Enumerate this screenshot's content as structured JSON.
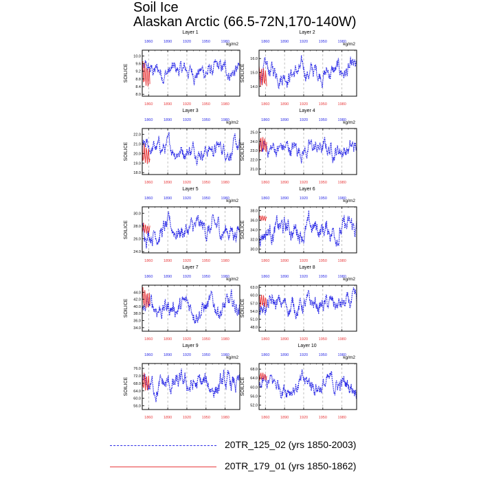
{
  "title": "Soil Ice",
  "subtitle": "Alaskan Arctic (66.5-72N,170-140W)",
  "colors": {
    "series1": "#2a2ae6",
    "series2": "#e8393b",
    "dash": "#999999"
  },
  "legend": [
    {
      "label": "20TR_125_02 (yrs 1850-2003)",
      "style": "dashed",
      "color": "#2a2ae6"
    },
    {
      "label": "20TR_179_01 (yrs 1850-1862)",
      "style": "solid",
      "color": "#e8393b"
    }
  ],
  "chart_data": [
    {
      "type": "line",
      "panel_title": "Layer 1",
      "units": "kg/m2",
      "ylabel": "SOILICE",
      "yticks": [
        "8.0",
        "8.4",
        "8.8",
        "9.2",
        "9.6",
        "10.0"
      ],
      "ylim": [
        7.9,
        10.3
      ],
      "top_xticks": [
        "1860",
        "1890",
        "1920",
        "1950",
        "1980"
      ],
      "bottom_xticks": [
        "1860",
        "1890",
        "1920",
        "1950",
        "1980"
      ],
      "series": [
        {
          "name": "20TR_125_02",
          "xlim": [
            1850,
            2003
          ],
          "range": [
            8.3,
            10.1
          ]
        },
        {
          "name": "20TR_179_01",
          "xlim": [
            1850,
            1862
          ],
          "range": [
            8.4,
            9.8
          ]
        }
      ]
    },
    {
      "type": "line",
      "panel_title": "Layer 2",
      "units": "kg/m2",
      "ylabel": "SOILICE",
      "yticks": [
        "14.0",
        "15.0",
        "16.0"
      ],
      "ylim": [
        13.3,
        16.6
      ],
      "top_xticks": [
        "1860",
        "1890",
        "1920",
        "1950",
        "1980"
      ],
      "bottom_xticks": [
        "1860",
        "1890",
        "1920",
        "1950",
        "1980"
      ],
      "series": [
        {
          "name": "20TR_125_02",
          "xlim": [
            1850,
            2003
          ],
          "range": [
            13.7,
            16.4
          ]
        },
        {
          "name": "20TR_179_01",
          "xlim": [
            1850,
            1862
          ],
          "range": [
            14.0,
            15.6
          ]
        }
      ]
    },
    {
      "type": "line",
      "panel_title": "Layer 3",
      "units": "kg/m2",
      "ylabel": "SOILICE",
      "yticks": [
        "18.0",
        "19.0",
        "20.0",
        "21.0",
        "22.0"
      ],
      "ylim": [
        17.8,
        22.6
      ],
      "top_xticks": [
        "1860",
        "1890",
        "1920",
        "1950",
        "1980"
      ],
      "bottom_xticks": [
        "1860",
        "1890",
        "1920",
        "1950",
        "1980"
      ],
      "series": [
        {
          "name": "20TR_125_02",
          "xlim": [
            1850,
            2003
          ],
          "range": [
            18.7,
            22.3
          ]
        },
        {
          "name": "20TR_179_01",
          "xlim": [
            1850,
            1862
          ],
          "range": [
            18.9,
            21.2
          ]
        }
      ]
    },
    {
      "type": "line",
      "panel_title": "Layer 4",
      "units": "kg/m2",
      "ylabel": "SOILICE",
      "yticks": [
        "21.0",
        "22.0",
        "23.0",
        "24.0",
        "25.0"
      ],
      "ylim": [
        20.4,
        25.4
      ],
      "top_xticks": [
        "1860",
        "1890",
        "1920",
        "1950",
        "1980"
      ],
      "bottom_xticks": [
        "1860",
        "1890",
        "1920",
        "1950",
        "1980"
      ],
      "series": [
        {
          "name": "20TR_125_02",
          "xlim": [
            1850,
            2003
          ],
          "range": [
            21.2,
            25.2
          ]
        },
        {
          "name": "20TR_179_01",
          "xlim": [
            1850,
            1862
          ],
          "range": [
            22.8,
            24.8
          ]
        }
      ]
    },
    {
      "type": "line",
      "panel_title": "Layer 5",
      "units": "kg/m2",
      "ylabel": "SOILICE",
      "yticks": [
        "24.0",
        "26.0",
        "28.0",
        "30.0"
      ],
      "ylim": [
        23.8,
        31.0
      ],
      "top_xticks": [
        "1860",
        "1890",
        "1920",
        "1950",
        "1980"
      ],
      "bottom_xticks": [
        "1860",
        "1890",
        "1920",
        "1950",
        "1980"
      ],
      "series": [
        {
          "name": "20TR_125_02",
          "xlim": [
            1850,
            2003
          ],
          "range": [
            24.2,
            30.6
          ]
        },
        {
          "name": "20TR_179_01",
          "xlim": [
            1850,
            1862
          ],
          "range": [
            26.8,
            28.6
          ]
        }
      ]
    },
    {
      "type": "line",
      "panel_title": "Layer 6",
      "units": "kg/m2",
      "ylabel": "SOILICE",
      "yticks": [
        "30.0",
        "32.0",
        "34.0",
        "36.0",
        "38.0"
      ],
      "ylim": [
        29.2,
        38.8
      ],
      "top_xticks": [
        "1860",
        "1890",
        "1920",
        "1950",
        "1980"
      ],
      "bottom_xticks": [
        "1860",
        "1890",
        "1920",
        "1950",
        "1980"
      ],
      "series": [
        {
          "name": "20TR_125_02",
          "xlim": [
            1850,
            2003
          ],
          "range": [
            29.6,
            38.6
          ]
        },
        {
          "name": "20TR_179_01",
          "xlim": [
            1850,
            1862
          ],
          "range": [
            35.8,
            37.2
          ]
        }
      ]
    },
    {
      "type": "line",
      "panel_title": "Layer 7",
      "units": "kg/m2",
      "ylabel": "SOILICE",
      "yticks": [
        "34.0",
        "36.0",
        "38.0",
        "40.0",
        "42.0",
        "44.0"
      ],
      "ylim": [
        33.0,
        46.0
      ],
      "top_xticks": [
        "1860",
        "1890",
        "1920",
        "1950",
        "1980"
      ],
      "bottom_xticks": [
        "1860",
        "1890",
        "1920",
        "1950",
        "1980"
      ],
      "series": [
        {
          "name": "20TR_125_02",
          "xlim": [
            1850,
            2003
          ],
          "range": [
            34.2,
            45.4
          ]
        },
        {
          "name": "20TR_179_01",
          "xlim": [
            1850,
            1862
          ],
          "range": [
            39.5,
            45.6
          ]
        }
      ]
    },
    {
      "type": "line",
      "panel_title": "Layer 8",
      "units": "kg/m2",
      "ylabel": "SOILICE",
      "yticks": [
        "48.0",
        "51.0",
        "54.0",
        "57.0",
        "60.0",
        "63.0"
      ],
      "ylim": [
        46.5,
        63.8
      ],
      "top_xticks": [
        "1860",
        "1890",
        "1920",
        "1950",
        "1980"
      ],
      "bottom_xticks": [
        "1860",
        "1890",
        "1920",
        "1950",
        "1980"
      ],
      "series": [
        {
          "name": "20TR_125_02",
          "xlim": [
            1850,
            2003
          ],
          "range": [
            49.0,
            63.2
          ]
        },
        {
          "name": "20TR_179_01",
          "xlim": [
            1850,
            1862
          ],
          "range": [
            55.5,
            61.0
          ]
        }
      ]
    },
    {
      "type": "line",
      "panel_title": "Layer 9",
      "units": "kg/m2",
      "ylabel": "SOILICE",
      "yticks": [
        "56.0",
        "60.0",
        "64.0",
        "68.0",
        "72.0",
        "76.0"
      ],
      "ylim": [
        54.0,
        78.6
      ],
      "top_xticks": [
        "1860",
        "1890",
        "1920",
        "1950",
        "1980"
      ],
      "bottom_xticks": [
        "1860",
        "1890",
        "1920",
        "1950",
        "1980"
      ],
      "series": [
        {
          "name": "20TR_125_02",
          "xlim": [
            1850,
            2003
          ],
          "range": [
            55.5,
            77.5
          ]
        },
        {
          "name": "20TR_179_01",
          "xlim": [
            1850,
            1862
          ],
          "range": [
            64.0,
            75.0
          ]
        }
      ]
    },
    {
      "type": "line",
      "panel_title": "Layer 10",
      "units": "kg/m2",
      "ylabel": "SOILICE",
      "yticks": [
        "52.0",
        "56.0",
        "60.0",
        "64.0",
        "68.0"
      ],
      "ylim": [
        50.0,
        70.5
      ],
      "top_xticks": [
        "1860",
        "1890",
        "1920",
        "1950",
        "1980"
      ],
      "bottom_xticks": [
        "1860",
        "1890",
        "1920",
        "1950",
        "1980"
      ],
      "series": [
        {
          "name": "20TR_125_02",
          "xlim": [
            1850,
            2003
          ],
          "range": [
            52.5,
            69.5
          ]
        },
        {
          "name": "20TR_179_01",
          "xlim": [
            1850,
            1862
          ],
          "range": [
            63.0,
            67.0
          ]
        }
      ]
    }
  ]
}
